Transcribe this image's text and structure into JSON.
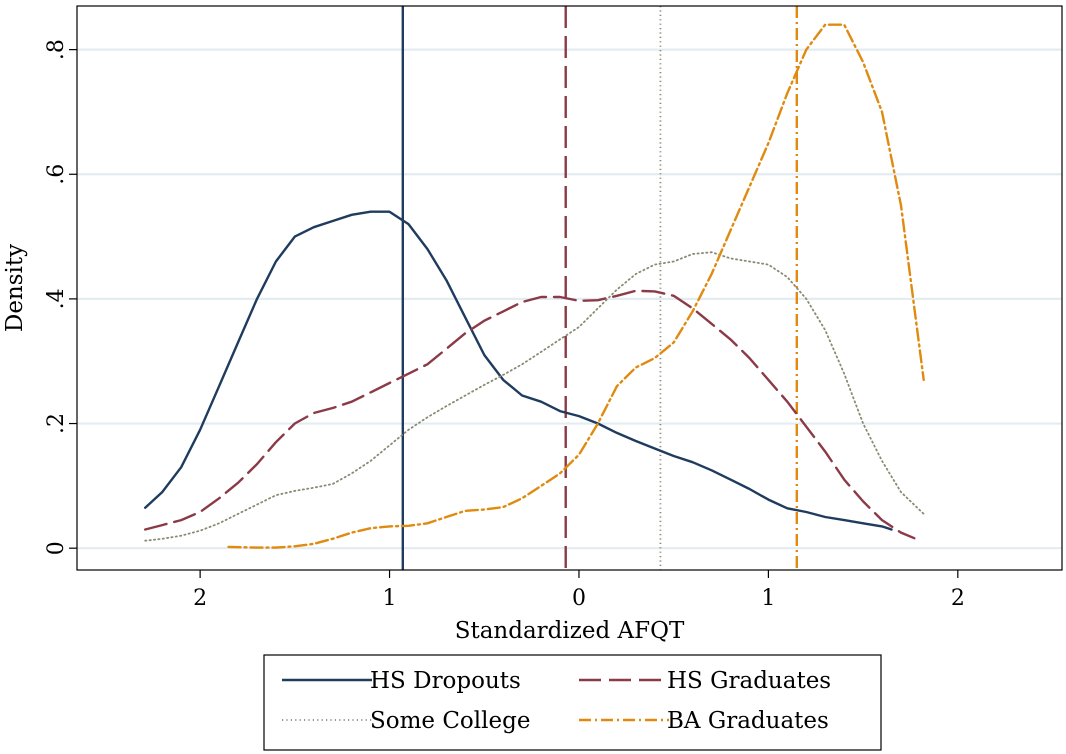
{
  "chart_data": {
    "type": "line",
    "title": "",
    "xlabel": "Standardized AFQT",
    "ylabel": "Density",
    "xlim": [
      -2.65,
      2.55
    ],
    "ylim": [
      -0.035,
      0.87
    ],
    "x_ticks": [
      {
        "value": -2,
        "label": "2"
      },
      {
        "value": -1,
        "label": "1"
      },
      {
        "value": 0,
        "label": "0"
      },
      {
        "value": 1,
        "label": "1"
      },
      {
        "value": 2,
        "label": "2"
      }
    ],
    "y_ticks": [
      {
        "value": 0,
        "label": "0"
      },
      {
        "value": 0.2,
        "label": ".2"
      },
      {
        "value": 0.4,
        "label": ".4"
      },
      {
        "value": 0.6,
        "label": ".6"
      },
      {
        "value": 0.8,
        "label": ".8"
      }
    ],
    "grid": {
      "horizontal": true,
      "vertical": false
    },
    "legend": {
      "position": "bottom",
      "columns": 2
    },
    "series": [
      {
        "name": "HS Dropouts",
        "color": "#1f3b5e",
        "dash": "solid",
        "mean": -0.93,
        "x": [
          -2.29,
          -2.2,
          -2.1,
          -2.0,
          -1.9,
          -1.8,
          -1.7,
          -1.6,
          -1.5,
          -1.4,
          -1.3,
          -1.2,
          -1.1,
          -1.0,
          -0.9,
          -0.8,
          -0.7,
          -0.6,
          -0.5,
          -0.4,
          -0.3,
          -0.2,
          -0.1,
          0.0,
          0.1,
          0.2,
          0.3,
          0.4,
          0.5,
          0.6,
          0.7,
          0.8,
          0.9,
          1.0,
          1.1,
          1.2,
          1.3,
          1.4,
          1.5,
          1.6,
          1.65
        ],
        "y": [
          0.065,
          0.09,
          0.13,
          0.19,
          0.26,
          0.33,
          0.4,
          0.46,
          0.5,
          0.515,
          0.525,
          0.535,
          0.54,
          0.54,
          0.52,
          0.48,
          0.43,
          0.37,
          0.31,
          0.27,
          0.245,
          0.235,
          0.22,
          0.212,
          0.2,
          0.185,
          0.172,
          0.16,
          0.148,
          0.138,
          0.125,
          0.11,
          0.095,
          0.078,
          0.064,
          0.058,
          0.05,
          0.045,
          0.04,
          0.035,
          0.03
        ]
      },
      {
        "name": "HS Graduates",
        "color": "#8b3a47",
        "dash": "long-dash",
        "mean": -0.07,
        "x": [
          -2.29,
          -2.2,
          -2.1,
          -2.0,
          -1.9,
          -1.8,
          -1.7,
          -1.6,
          -1.5,
          -1.4,
          -1.3,
          -1.2,
          -1.1,
          -1.0,
          -0.9,
          -0.8,
          -0.7,
          -0.6,
          -0.5,
          -0.4,
          -0.3,
          -0.2,
          -0.1,
          0.0,
          0.1,
          0.2,
          0.3,
          0.4,
          0.5,
          0.6,
          0.7,
          0.8,
          0.9,
          1.0,
          1.1,
          1.2,
          1.3,
          1.4,
          1.5,
          1.6,
          1.7,
          1.77
        ],
        "y": [
          0.03,
          0.037,
          0.045,
          0.058,
          0.08,
          0.105,
          0.135,
          0.17,
          0.2,
          0.217,
          0.225,
          0.235,
          0.25,
          0.265,
          0.28,
          0.295,
          0.32,
          0.345,
          0.365,
          0.38,
          0.395,
          0.403,
          0.403,
          0.397,
          0.398,
          0.405,
          0.413,
          0.412,
          0.405,
          0.385,
          0.36,
          0.335,
          0.305,
          0.27,
          0.235,
          0.195,
          0.155,
          0.11,
          0.075,
          0.045,
          0.025,
          0.016
        ]
      },
      {
        "name": "Some College",
        "color": "#8a8a72",
        "dash": "dotted",
        "mean": 0.43,
        "x": [
          -2.29,
          -2.2,
          -2.1,
          -2.0,
          -1.9,
          -1.8,
          -1.7,
          -1.6,
          -1.5,
          -1.4,
          -1.3,
          -1.2,
          -1.1,
          -1.0,
          -0.9,
          -0.8,
          -0.7,
          -0.6,
          -0.5,
          -0.4,
          -0.3,
          -0.2,
          -0.1,
          0.0,
          0.1,
          0.2,
          0.3,
          0.4,
          0.5,
          0.6,
          0.7,
          0.8,
          0.9,
          1.0,
          1.1,
          1.2,
          1.3,
          1.4,
          1.5,
          1.6,
          1.7,
          1.82
        ],
        "y": [
          0.012,
          0.015,
          0.02,
          0.028,
          0.04,
          0.055,
          0.07,
          0.085,
          0.092,
          0.097,
          0.103,
          0.12,
          0.14,
          0.165,
          0.19,
          0.21,
          0.228,
          0.245,
          0.262,
          0.278,
          0.295,
          0.315,
          0.335,
          0.355,
          0.385,
          0.415,
          0.44,
          0.455,
          0.46,
          0.472,
          0.475,
          0.465,
          0.46,
          0.455,
          0.435,
          0.4,
          0.35,
          0.28,
          0.2,
          0.14,
          0.09,
          0.055
        ]
      },
      {
        "name": "BA Graduates",
        "color": "#e08a10",
        "dash": "dash-dot",
        "mean": 1.15,
        "x": [
          -1.85,
          -1.7,
          -1.6,
          -1.5,
          -1.4,
          -1.3,
          -1.2,
          -1.1,
          -1.0,
          -0.9,
          -0.8,
          -0.7,
          -0.6,
          -0.5,
          -0.4,
          -0.3,
          -0.2,
          -0.1,
          0.0,
          0.1,
          0.2,
          0.3,
          0.4,
          0.5,
          0.6,
          0.7,
          0.8,
          0.9,
          1.0,
          1.1,
          1.2,
          1.3,
          1.4,
          1.5,
          1.6,
          1.7,
          1.82
        ],
        "y": [
          0.002,
          0.001,
          0.001,
          0.003,
          0.007,
          0.015,
          0.025,
          0.032,
          0.035,
          0.036,
          0.04,
          0.05,
          0.06,
          0.062,
          0.066,
          0.08,
          0.1,
          0.12,
          0.15,
          0.2,
          0.26,
          0.29,
          0.305,
          0.33,
          0.38,
          0.44,
          0.51,
          0.58,
          0.65,
          0.73,
          0.8,
          0.84,
          0.84,
          0.78,
          0.7,
          0.55,
          0.27
        ]
      }
    ]
  }
}
